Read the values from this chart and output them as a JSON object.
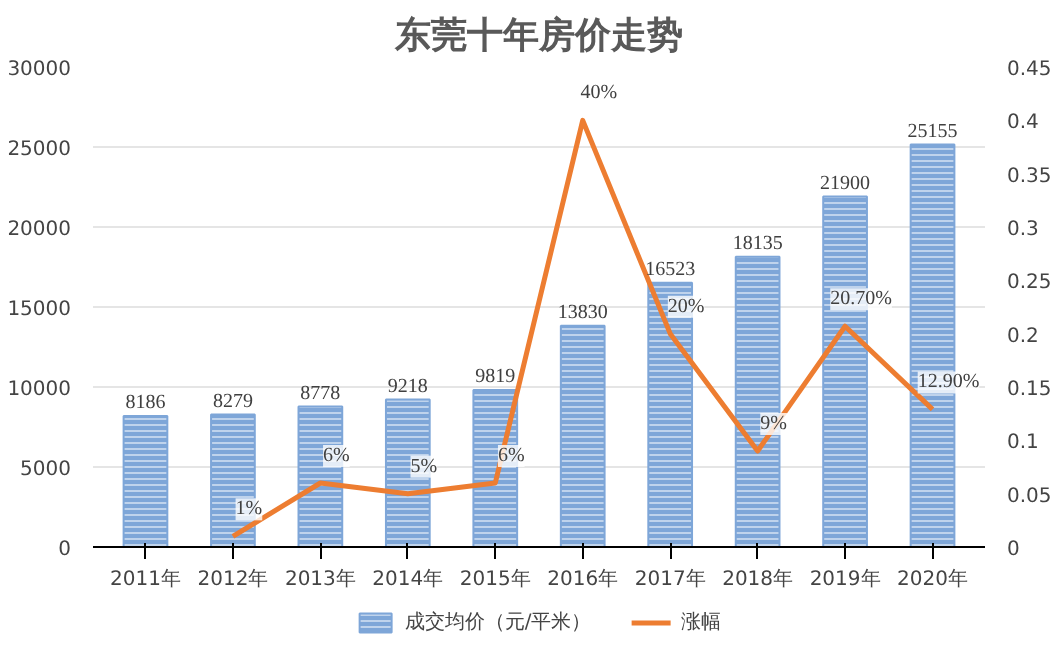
{
  "chart_data": {
    "type": "bar",
    "title": "东莞十年房价走势",
    "categories": [
      "2011年",
      "2012年",
      "2013年",
      "2014年",
      "2015年",
      "2016年",
      "2017年",
      "2018年",
      "2019年",
      "2020年"
    ],
    "series": [
      {
        "name": "成交均价（元/平米）",
        "color": "#7ea6d8",
        "values": [
          8186,
          8279,
          8778,
          9218,
          9819,
          13830,
          16523,
          18135,
          21900,
          25155
        ],
        "value_labels": [
          "8186",
          "8279",
          "8778",
          "9218",
          "9819",
          "13830",
          "16523",
          "18135",
          "21900",
          "25155"
        ]
      },
      {
        "name": "涨幅",
        "type": "line",
        "axis": "y2",
        "color": "#ed7d31",
        "values": [
          null,
          0.01,
          0.06,
          0.05,
          0.06,
          0.4,
          0.2,
          0.09,
          0.207,
          0.129
        ],
        "value_labels": [
          null,
          "1%",
          "6%",
          "5%",
          "6%",
          "40%",
          "20%",
          "9%",
          "20.70%",
          "12.90%"
        ]
      }
    ],
    "ylim": [
      0,
      30000
    ],
    "yticks": [
      0,
      5000,
      10000,
      15000,
      20000,
      25000,
      30000
    ],
    "y2lim": [
      0,
      0.45
    ],
    "y2ticks": [
      0,
      0.05,
      0.1,
      0.15,
      0.2,
      0.25,
      0.3,
      0.35,
      0.4,
      0.45
    ],
    "grid": "y",
    "legend": "bottom",
    "marker": "none",
    "line_style": "solid"
  }
}
